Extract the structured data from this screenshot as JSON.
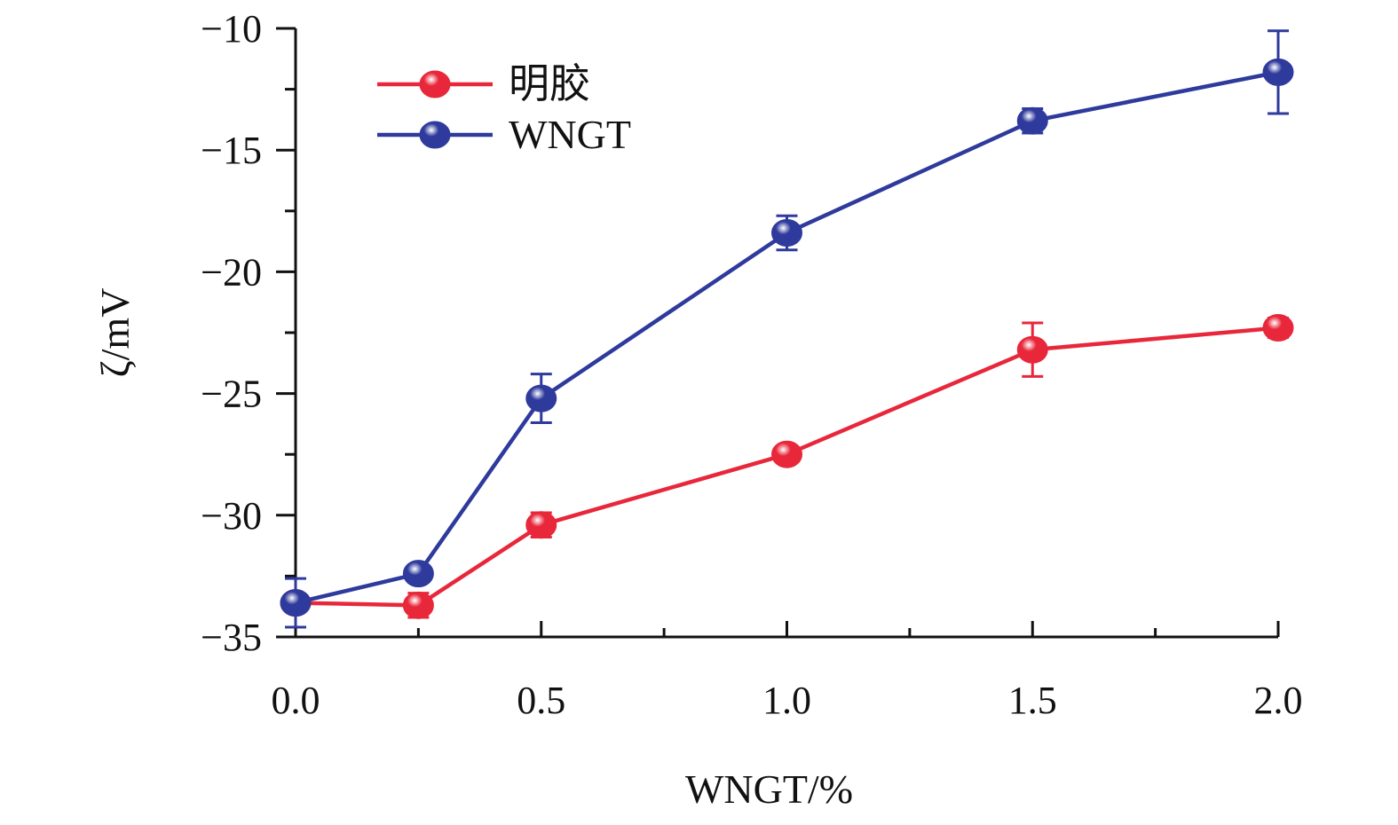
{
  "chart_data": {
    "type": "line",
    "xlabel": "WNGT/%",
    "ylabel": "ζ/mV",
    "xlim": [
      0.0,
      2.0
    ],
    "ylim": [
      -35,
      -10
    ],
    "x_ticks": [
      0.0,
      0.5,
      1.0,
      1.5,
      2.0
    ],
    "x_tick_labels": [
      "0.0",
      "0.5",
      "1.0",
      "1.5",
      "2.0"
    ],
    "x_minor_ticks": [
      0.25,
      0.75,
      1.25,
      1.75
    ],
    "y_ticks": [
      -35,
      -30,
      -25,
      -20,
      -15,
      -10
    ],
    "y_tick_labels": [
      "−35",
      "−30",
      "−25",
      "−20",
      "−15",
      "−10"
    ],
    "y_minor_ticks": [
      -32.5,
      -27.5,
      -22.5,
      -17.5,
      -12.5
    ],
    "legend_position": "top-left",
    "grid": false,
    "x": [
      0.0,
      0.25,
      0.5,
      1.0,
      1.5,
      2.0
    ],
    "series": [
      {
        "name": "明胶",
        "color": "#e8273a",
        "values": [
          -33.6,
          -33.7,
          -30.4,
          -27.5,
          -23.2,
          -22.3
        ],
        "errors": [
          0.3,
          0.5,
          0.5,
          0.3,
          1.1,
          0.4
        ]
      },
      {
        "name": "WNGT",
        "color": "#2e3a9c",
        "values": [
          -33.6,
          -32.4,
          -25.2,
          -18.4,
          -13.8,
          -11.8
        ],
        "errors": [
          1.0,
          0.3,
          1.0,
          0.7,
          0.5,
          1.7
        ]
      }
    ]
  }
}
